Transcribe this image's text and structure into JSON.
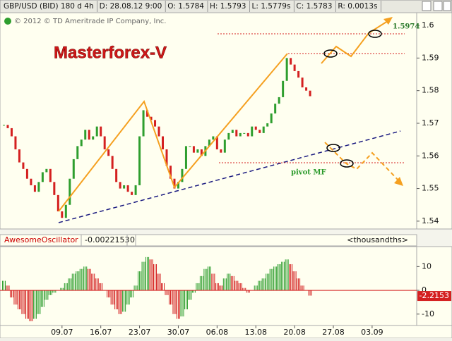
{
  "toolbar": {
    "items": [
      "GBP/USD (BID) 180 d 4h",
      "D: 28.08.12 9:00",
      "O: 1.5784",
      "H: 1.5793",
      "L: 1.5779s",
      "C: 1.5783",
      "R: 0.0013s"
    ],
    "copyright": "© 2012 © TD Ameritrade IP Company, Inc."
  },
  "indicator": {
    "name": "AwesomeOscillator",
    "value": "-0.0022153",
    "param": "0",
    "units": "<thousandths>"
  },
  "chart_data": [
    {
      "type": "candlestick",
      "title": "Masterforex-V",
      "annotations": [
        "1.5974",
        "pivot MF"
      ],
      "up_color": "#2e9e2e",
      "down_color": "#d42020",
      "values": [
        1.5695,
        1.5685,
        1.566,
        1.562,
        1.558,
        1.556,
        1.553,
        1.551,
        1.549,
        1.552,
        1.555,
        1.556,
        1.552,
        1.548,
        1.543,
        1.541,
        1.545,
        1.553,
        1.559,
        1.563,
        1.565,
        1.568,
        1.565,
        1.566,
        1.569,
        1.566,
        1.562,
        1.56,
        1.556,
        1.552,
        1.55,
        1.551,
        1.549,
        1.548,
        1.551,
        1.566,
        1.574,
        1.572,
        1.571,
        1.569,
        1.566,
        1.562,
        1.557,
        1.553,
        1.55,
        1.552,
        1.556,
        1.563,
        1.563,
        1.561,
        1.562,
        1.56,
        1.563,
        1.565,
        1.566,
        1.562,
        1.561,
        1.565,
        1.567,
        1.568,
        1.566,
        1.567,
        1.567,
        1.566,
        1.569,
        1.568,
        1.567,
        1.569,
        1.57,
        1.573,
        1.576,
        1.578,
        1.583,
        1.59,
        1.588,
        1.586,
        1.584,
        1.581,
        1.58,
        1.5783
      ],
      "xlim": [
        -1,
        106.5
      ],
      "xticks": [
        {
          "value": 15,
          "label": "09.07"
        },
        {
          "value": 25,
          "label": "16.07"
        },
        {
          "value": 35,
          "label": "23.07"
        },
        {
          "value": 45,
          "label": "30.07"
        },
        {
          "value": 55,
          "label": "06.08"
        },
        {
          "value": 65,
          "label": "13.08"
        },
        {
          "value": 75,
          "label": "20.08"
        },
        {
          "value": 85,
          "label": "27.08"
        },
        {
          "value": 95,
          "label": "03.09"
        }
      ],
      "ylim": [
        1.5376,
        1.6039
      ],
      "yticks": [
        1.54,
        1.55,
        1.56,
        1.57,
        1.58,
        1.59,
        1.6
      ]
    },
    {
      "type": "histogram-oscillator",
      "up_color": "#2e9e2e",
      "down_color": "#d42020",
      "values": [
        4,
        2,
        -3,
        -6,
        -8,
        -10,
        -12,
        -13,
        -12,
        -10,
        -7,
        -4,
        -2,
        -1,
        0,
        1,
        3,
        5,
        7,
        8,
        9,
        10,
        9,
        7,
        5,
        3,
        0,
        -3,
        -6,
        -8,
        -10,
        -9,
        -6,
        -3,
        2,
        8,
        12,
        14,
        13,
        11,
        7,
        3,
        -2,
        -6,
        -10,
        -12,
        -11,
        -8,
        -4,
        -1,
        3,
        6,
        9,
        10,
        7,
        3,
        2,
        5,
        7,
        6,
        4,
        3,
        1,
        -1,
        0,
        2,
        4,
        5,
        7,
        9,
        10,
        11,
        12,
        13,
        11,
        8,
        5,
        2,
        0,
        -2.2153
      ],
      "xlim": [
        -1,
        106.5
      ],
      "ylim": [
        -14.8,
        18.4
      ],
      "yticks": [
        -10,
        0,
        10
      ]
    }
  ]
}
